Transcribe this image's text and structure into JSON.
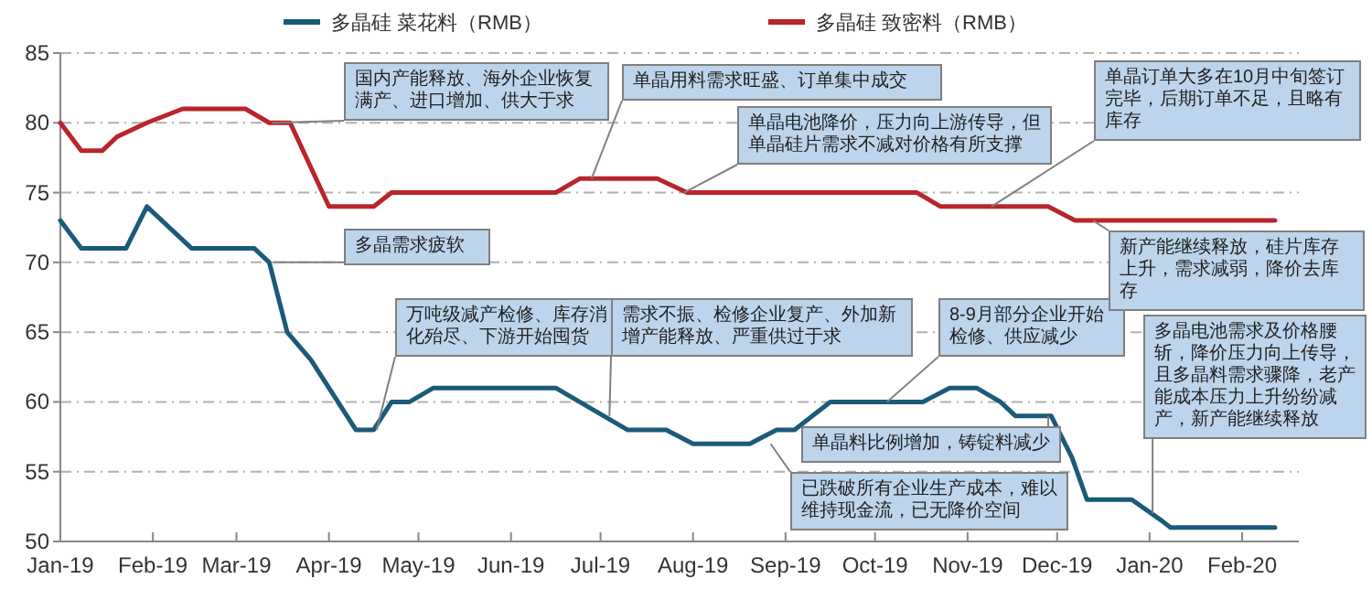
{
  "chart_data": {
    "type": "line",
    "xlim": [
      "2019-01-01",
      "2020-02-20"
    ],
    "ylim": [
      50,
      85
    ],
    "yticks": [
      50,
      55,
      60,
      65,
      70,
      75,
      80,
      85
    ],
    "xticks": [
      {
        "value": "2019-01-01",
        "label": "Jan-19"
      },
      {
        "value": "2019-02-01",
        "label": "Feb-19"
      },
      {
        "value": "2019-03-01",
        "label": "Mar-19"
      },
      {
        "value": "2019-04-01",
        "label": "Apr-19"
      },
      {
        "value": "2019-05-01",
        "label": "May-19"
      },
      {
        "value": "2019-06-01",
        "label": "Jun-19"
      },
      {
        "value": "2019-07-01",
        "label": "Jul-19"
      },
      {
        "value": "2019-08-01",
        "label": "Aug-19"
      },
      {
        "value": "2019-09-01",
        "label": "Sep-19"
      },
      {
        "value": "2019-10-01",
        "label": "Oct-19"
      },
      {
        "value": "2019-11-01",
        "label": "Nov-19"
      },
      {
        "value": "2019-12-01",
        "label": "Dec-19"
      },
      {
        "value": "2020-01-01",
        "label": "Jan-20"
      },
      {
        "value": "2020-02-01",
        "label": "Feb-20"
      }
    ],
    "grid": "y",
    "legend": "top",
    "marker": "none",
    "line_style": "solid",
    "series": [
      {
        "name": "多晶硅 菜花料（RMB）",
        "color": "#1b5a78",
        "x": [
          "2019-01-01",
          "2019-01-08",
          "2019-01-23",
          "2019-01-30",
          "2019-02-14",
          "2019-03-07",
          "2019-03-12",
          "2019-03-18",
          "2019-03-26",
          "2019-04-10",
          "2019-04-16",
          "2019-04-22",
          "2019-04-28",
          "2019-05-06",
          "2019-06-16",
          "2019-07-02",
          "2019-07-10",
          "2019-07-23",
          "2019-08-01",
          "2019-08-20",
          "2019-08-29",
          "2019-09-04",
          "2019-09-16",
          "2019-10-17",
          "2019-10-26",
          "2019-11-04",
          "2019-11-12",
          "2019-11-17",
          "2019-11-29",
          "2019-12-06",
          "2019-12-11",
          "2019-12-26",
          "2020-01-05",
          "2020-01-08",
          "2020-02-12"
        ],
        "values": [
          73,
          71,
          71,
          74,
          71,
          71,
          70,
          65,
          63,
          58,
          58,
          60,
          60,
          61,
          61,
          59,
          58,
          58,
          57,
          57,
          58,
          58,
          60,
          60,
          61,
          61,
          60,
          59,
          59,
          56,
          53,
          53,
          51.5,
          51,
          51
        ]
      },
      {
        "name": "多晶硅 致密料（RMB）",
        "color": "#b8252a",
        "x": [
          "2019-01-01",
          "2019-01-08",
          "2019-01-15",
          "2019-01-20",
          "2019-01-30",
          "2019-02-11",
          "2019-03-04",
          "2019-03-12",
          "2019-03-19",
          "2019-04-01",
          "2019-04-16",
          "2019-04-22",
          "2019-06-16",
          "2019-06-24",
          "2019-07-20",
          "2019-07-30",
          "2019-10-15",
          "2019-10-23",
          "2019-11-28",
          "2019-12-07",
          "2020-02-12"
        ],
        "values": [
          80,
          78,
          78,
          79,
          80,
          81,
          81,
          80,
          80,
          74,
          74,
          75,
          75,
          76,
          76,
          75,
          75,
          74,
          74,
          73,
          73
        ]
      }
    ],
    "annotations": [
      {
        "text": "国内产能释放、海外企业恢复满产、进口增加、供大于求",
        "x": "2019-03-13",
        "y": 80
      },
      {
        "text": "多晶需求疲软",
        "x": "2019-03-13",
        "y": 70
      },
      {
        "text": "万吨级减产检修、库存消化殆尽、下游开始囤货",
        "x": "2019-04-17",
        "y": 58
      },
      {
        "text": "单晶用料需求旺盛、订单集中成交",
        "x": "2019-06-28",
        "y": 76
      },
      {
        "text": "单晶电池降价，压力向上游传导，但单晶硅片需求不减对价格有所支撑",
        "x": "2019-07-29",
        "y": 75
      },
      {
        "text": "需求不振、检修企业复产、外加新增产能释放、严重供过于求",
        "x": "2019-07-04",
        "y": 59
      },
      {
        "text": "8-9月部分企业开始检修、供应减少",
        "x": "2019-10-05",
        "y": 60
      },
      {
        "text": "已跌破所有企业生产成本，难以维持现金流，已无降价空间",
        "x": "2019-08-27",
        "y": 57
      },
      {
        "text": "单晶订单大多在10月中旬签订完毕，后期订单不足，且略有库存",
        "x": "2019-11-09",
        "y": 74
      },
      {
        "text": "新产能继续释放，硅片库存上升，需求减弱，降价去库存",
        "x": "2019-12-13",
        "y": 73
      },
      {
        "text": "单晶料比例增加，铸锭料减少",
        "x": "2019-11-28",
        "y": 59
      },
      {
        "text": "多晶电池需求及价格腰斩，降价压力向上传导，且多晶料需求骤降，老产能成本压力上升纷纷减产，新产能继续释放",
        "x": "2020-01-02",
        "y": 52
      }
    ]
  }
}
